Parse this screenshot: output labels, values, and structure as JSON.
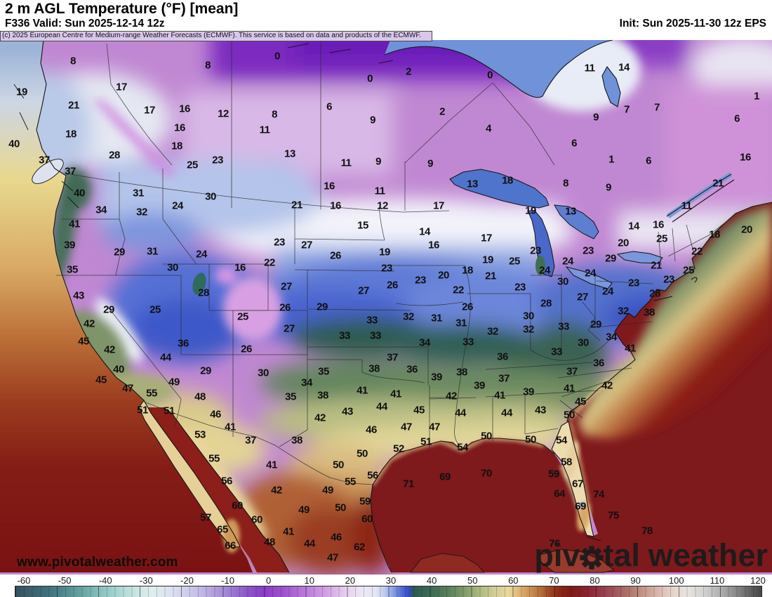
{
  "header": {
    "title": "2 m AGL Temperature (°F) [mean]",
    "valid": "F336 Valid: Sun 2025-12-14 12z",
    "init": "Init: Sun 2025-11-30 12z EPS"
  },
  "copyright": "(c) 2025 European Centre for Medium-range Weather Forecasts (ECMWF). This service is based on data and products of the ECMWF.",
  "watermark": "www.pivotalweather.com",
  "logo": {
    "part1": "piv",
    "part2": "tal",
    "part3": "weather"
  },
  "colorbar": {
    "unit": "°F",
    "min": -60,
    "max": 120,
    "ticks": [
      -60,
      -50,
      -40,
      -30,
      -20,
      -10,
      0,
      10,
      20,
      30,
      40,
      50,
      60,
      70,
      80,
      90,
      100,
      110,
      120
    ],
    "stops": [
      [
        -60,
        "#36525e"
      ],
      [
        -52,
        "#40707c"
      ],
      [
        -45,
        "#5f9e9c"
      ],
      [
        -38,
        "#93cac4"
      ],
      [
        -32,
        "#c2e2de"
      ],
      [
        -27,
        "#dfeeee"
      ],
      [
        -22,
        "#dcdff0"
      ],
      [
        -16,
        "#c5bfe6"
      ],
      [
        -10,
        "#a78fd6"
      ],
      [
        -4,
        "#8a57c6"
      ],
      [
        0,
        "#8a3cc6"
      ],
      [
        5,
        "#a055cd"
      ],
      [
        10,
        "#bc7ad8"
      ],
      [
        15,
        "#d2a2e4"
      ],
      [
        20,
        "#e6d2ee"
      ],
      [
        24,
        "#eee8f4"
      ],
      [
        27,
        "#e2e6f4"
      ],
      [
        29,
        "#bfcbee"
      ],
      [
        31,
        "#8ba3e2"
      ],
      [
        33,
        "#5570d4"
      ],
      [
        35,
        "#3347c4"
      ],
      [
        36,
        "#2c5a52"
      ],
      [
        40,
        "#3d6b54"
      ],
      [
        44,
        "#567c5a"
      ],
      [
        48,
        "#7e9768"
      ],
      [
        52,
        "#abb980"
      ],
      [
        56,
        "#d6cf97"
      ],
      [
        59,
        "#e7d89c"
      ],
      [
        61,
        "#e2bd7b"
      ],
      [
        64,
        "#cd9257"
      ],
      [
        67,
        "#b06a38"
      ],
      [
        69,
        "#9c4524"
      ],
      [
        71,
        "#8c2a18"
      ],
      [
        74,
        "#7e1a18"
      ],
      [
        78,
        "#8b2330"
      ],
      [
        82,
        "#984150"
      ],
      [
        86,
        "#a4615f"
      ],
      [
        90,
        "#ba887a"
      ],
      [
        94,
        "#d3aea1"
      ],
      [
        98,
        "#e4d0c7"
      ],
      [
        102,
        "#e9e4df"
      ],
      [
        106,
        "#d3d3d1"
      ],
      [
        110,
        "#b1b1b1"
      ],
      [
        114,
        "#878787"
      ],
      [
        118,
        "#595959"
      ],
      [
        120,
        "#474747"
      ]
    ]
  },
  "map": {
    "temps": [
      [
        8,
        104,
        87
      ],
      [
        8,
        296,
        93
      ],
      [
        0,
        395,
        80
      ],
      [
        0,
        527,
        112
      ],
      [
        2,
        582,
        102
      ],
      [
        0,
        698,
        107
      ],
      [
        11,
        840,
        97
      ],
      [
        14,
        889,
        96
      ],
      [
        19,
        31,
        131
      ],
      [
        17,
        173,
        124
      ],
      [
        21,
        105,
        150
      ],
      [
        17,
        213,
        157
      ],
      [
        16,
        263,
        155
      ],
      [
        12,
        318,
        162
      ],
      [
        8,
        391,
        163
      ],
      [
        6,
        469,
        152
      ],
      [
        9,
        531,
        171
      ],
      [
        2,
        630,
        159
      ],
      [
        4,
        696,
        183
      ],
      [
        7,
        893,
        156
      ],
      [
        7,
        936,
        153
      ],
      [
        1,
        1078,
        137
      ],
      [
        9,
        849,
        167
      ],
      [
        6,
        1050,
        169
      ],
      [
        18,
        101,
        191
      ],
      [
        16,
        256,
        182
      ],
      [
        11,
        377,
        185
      ],
      [
        13,
        413,
        219
      ],
      [
        18,
        252,
        208
      ],
      [
        28,
        163,
        221
      ],
      [
        25,
        274,
        235
      ],
      [
        23,
        310,
        228
      ],
      [
        40,
        20,
        205
      ],
      [
        37,
        63,
        228
      ],
      [
        37,
        100,
        244
      ],
      [
        11,
        493,
        232
      ],
      [
        9,
        539,
        230
      ],
      [
        9,
        613,
        233
      ],
      [
        13,
        673,
        262
      ],
      [
        18,
        723,
        257
      ],
      [
        8,
        806,
        261
      ],
      [
        9,
        867,
        267
      ],
      [
        6,
        818,
        204
      ],
      [
        1,
        871,
        227
      ],
      [
        6,
        924,
        229
      ],
      [
        16,
        1062,
        224
      ],
      [
        21,
        1023,
        261
      ],
      [
        11,
        978,
        293
      ],
      [
        13,
        813,
        301
      ],
      [
        19,
        756,
        300
      ],
      [
        40,
        113,
        275
      ],
      [
        31,
        197,
        275
      ],
      [
        30,
        300,
        280
      ],
      [
        24,
        253,
        293
      ],
      [
        34,
        144,
        299
      ],
      [
        32,
        202,
        302
      ],
      [
        16,
        469,
        265
      ],
      [
        11,
        541,
        272
      ],
      [
        21,
        423,
        292
      ],
      [
        16,
        478,
        293
      ],
      [
        12,
        545,
        293
      ],
      [
        17,
        625,
        293
      ],
      [
        41,
        106,
        319
      ],
      [
        39,
        99,
        349
      ],
      [
        29,
        170,
        359
      ],
      [
        31,
        217,
        358
      ],
      [
        24,
        287,
        362
      ],
      [
        30,
        246,
        381
      ],
      [
        16,
        342,
        381
      ],
      [
        35,
        103,
        384
      ],
      [
        15,
        517,
        321
      ],
      [
        14,
        605,
        330
      ],
      [
        17,
        693,
        339
      ],
      [
        23,
        398,
        345
      ],
      [
        27,
        437,
        349
      ],
      [
        16,
        618,
        349
      ],
      [
        26,
        478,
        364
      ],
      [
        19,
        548,
        359
      ],
      [
        19,
        695,
        370
      ],
      [
        25,
        733,
        372
      ],
      [
        22,
        384,
        374
      ],
      [
        23,
        551,
        382
      ],
      [
        18,
        666,
        385
      ],
      [
        20,
        632,
        392
      ],
      [
        21,
        699,
        393
      ],
      [
        23,
        599,
        399
      ],
      [
        27,
        408,
        408
      ],
      [
        26,
        559,
        406
      ],
      [
        22,
        653,
        413
      ],
      [
        23,
        741,
        409
      ],
      [
        27,
        518,
        414
      ],
      [
        14,
        903,
        322
      ],
      [
        16,
        938,
        320
      ],
      [
        25,
        943,
        340
      ],
      [
        18,
        1018,
        334
      ],
      [
        20,
        1064,
        327
      ],
      [
        20,
        888,
        346
      ],
      [
        23,
        838,
        357
      ],
      [
        22,
        993,
        358
      ],
      [
        24,
        809,
        372
      ],
      [
        29,
        870,
        368
      ],
      [
        21,
        935,
        378
      ],
      [
        24,
        776,
        385
      ],
      [
        25,
        981,
        385
      ],
      [
        24,
        841,
        389
      ],
      [
        30,
        802,
        401
      ],
      [
        23,
        903,
        403
      ],
      [
        23,
        953,
        398
      ],
      [
        24,
        866,
        415
      ],
      [
        27,
        830,
        423
      ],
      [
        28,
        933,
        418
      ],
      [
        28,
        778,
        432
      ],
      [
        23,
        763,
        357
      ],
      [
        43,
        112,
        421
      ],
      [
        28,
        290,
        417
      ],
      [
        29,
        155,
        441
      ],
      [
        25,
        221,
        441
      ],
      [
        25,
        346,
        451
      ],
      [
        42,
        127,
        461
      ],
      [
        45,
        119,
        486
      ],
      [
        42,
        156,
        498
      ],
      [
        36,
        261,
        489
      ],
      [
        26,
        351,
        497
      ],
      [
        44,
        236,
        509
      ],
      [
        40,
        169,
        526
      ],
      [
        29,
        293,
        528
      ],
      [
        30,
        375,
        531
      ],
      [
        45,
        144,
        541
      ],
      [
        49,
        248,
        544
      ],
      [
        47,
        182,
        553
      ],
      [
        55,
        216,
        560
      ],
      [
        48,
        285,
        565
      ],
      [
        26,
        406,
        438
      ],
      [
        29,
        459,
        437
      ],
      [
        26,
        666,
        437
      ],
      [
        27,
        412,
        468
      ],
      [
        33,
        530,
        456
      ],
      [
        32,
        582,
        451
      ],
      [
        31,
        622,
        453
      ],
      [
        31,
        657,
        460
      ],
      [
        30,
        753,
        450
      ],
      [
        33,
        491,
        478
      ],
      [
        33,
        535,
        478
      ],
      [
        34,
        605,
        488
      ],
      [
        33,
        667,
        487
      ],
      [
        32,
        702,
        472
      ],
      [
        32,
        753,
        469
      ],
      [
        32,
        888,
        443
      ],
      [
        38,
        925,
        445
      ],
      [
        33,
        803,
        465
      ],
      [
        29,
        849,
        462
      ],
      [
        34,
        871,
        480
      ],
      [
        30,
        831,
        488
      ],
      [
        33,
        793,
        501
      ],
      [
        41,
        898,
        496
      ],
      [
        35,
        461,
        529
      ],
      [
        37,
        559,
        509
      ],
      [
        38,
        533,
        525
      ],
      [
        36,
        587,
        526
      ],
      [
        36,
        716,
        508
      ],
      [
        34,
        437,
        545
      ],
      [
        39,
        622,
        537
      ],
      [
        38,
        658,
        530
      ],
      [
        37,
        718,
        539
      ],
      [
        39,
        683,
        549
      ],
      [
        35,
        414,
        565
      ],
      [
        38,
        460,
        563
      ],
      [
        41,
        516,
        556
      ],
      [
        41,
        564,
        561
      ],
      [
        42,
        643,
        564
      ],
      [
        41,
        712,
        563
      ],
      [
        39,
        753,
        558
      ],
      [
        36,
        853,
        517
      ],
      [
        37,
        815,
        529
      ],
      [
        42,
        865,
        549
      ],
      [
        41,
        811,
        553
      ],
      [
        45,
        827,
        572
      ],
      [
        51,
        203,
        584
      ],
      [
        51,
        241,
        585
      ],
      [
        46,
        307,
        590
      ],
      [
        41,
        328,
        608
      ],
      [
        53,
        285,
        619
      ],
      [
        37,
        357,
        627
      ],
      [
        55,
        305,
        653
      ],
      [
        56,
        323,
        685
      ],
      [
        60,
        338,
        720
      ],
      [
        57,
        293,
        737
      ],
      [
        60,
        366,
        740
      ],
      [
        65,
        317,
        754
      ],
      [
        66,
        328,
        777
      ],
      [
        43,
        495,
        586
      ],
      [
        44,
        544,
        579
      ],
      [
        45,
        597,
        584
      ],
      [
        44,
        656,
        588
      ],
      [
        44,
        722,
        588
      ],
      [
        42,
        456,
        595
      ],
      [
        46,
        529,
        612
      ],
      [
        47,
        579,
        608
      ],
      [
        47,
        619,
        608
      ],
      [
        38,
        423,
        627
      ],
      [
        50,
        693,
        621
      ],
      [
        50,
        756,
        626
      ],
      [
        51,
        607,
        629
      ],
      [
        52,
        568,
        639
      ],
      [
        54,
        659,
        637
      ],
      [
        41,
        387,
        662
      ],
      [
        50,
        516,
        646
      ],
      [
        50,
        482,
        662
      ],
      [
        69,
        634,
        679
      ],
      [
        70,
        693,
        674
      ],
      [
        71,
        582,
        689
      ],
      [
        55,
        499,
        686
      ],
      [
        56,
        531,
        677
      ],
      [
        42,
        394,
        698
      ],
      [
        49,
        467,
        698
      ],
      [
        59,
        520,
        714
      ],
      [
        49,
        433,
        726
      ],
      [
        50,
        485,
        723
      ],
      [
        60,
        523,
        739
      ],
      [
        41,
        411,
        757
      ],
      [
        46,
        479,
        765
      ],
      [
        44,
        441,
        774
      ],
      [
        48,
        384,
        772
      ],
      [
        62,
        512,
        779
      ],
      [
        47,
        474,
        794
      ],
      [
        43,
        770,
        584
      ],
      [
        50,
        811,
        591
      ],
      [
        54,
        800,
        627
      ],
      [
        58,
        807,
        658
      ],
      [
        59,
        789,
        675
      ],
      [
        67,
        823,
        689
      ],
      [
        64,
        797,
        703
      ],
      [
        74,
        853,
        704
      ],
      [
        69,
        827,
        721
      ],
      [
        75,
        874,
        734
      ],
      [
        78,
        922,
        756
      ],
      [
        76,
        790,
        774
      ]
    ]
  }
}
